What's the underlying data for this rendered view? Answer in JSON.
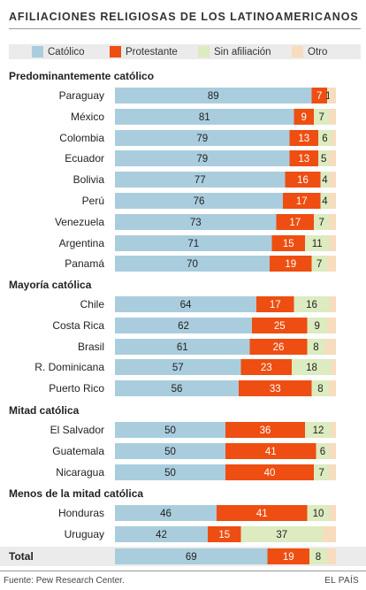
{
  "title": "AFILIACIONES RELIGIOSAS DE LOS LATINOAMERICANOS",
  "source": "Fuente: Pew Research Center.",
  "brand": "EL PAÍS",
  "colors": {
    "catolico": "#aacdde",
    "protestante": "#ee4e11",
    "sin_afiliacion": "#dcebc0",
    "otro": "#f7dcbe",
    "total_row": "#ebebeb"
  },
  "legend": [
    {
      "label": "Católico",
      "color": "#aacdde"
    },
    {
      "label": "Protestante",
      "color": "#ee4e11"
    },
    {
      "label": "Sin afiliación",
      "color": "#dcebc0"
    },
    {
      "label": "Otro",
      "color": "#f7dcbe"
    }
  ],
  "chart_data": {
    "type": "bar",
    "stacked": true,
    "orientation": "horizontal",
    "unit": "%",
    "xlim": [
      0,
      100
    ],
    "series_names": [
      "Católico",
      "Protestante",
      "Sin afiliación",
      "Otro"
    ],
    "groups": [
      {
        "name": "Predominantemente católico",
        "rows": [
          {
            "label": "Paraguay",
            "values": [
              89,
              7,
              1,
              3
            ]
          },
          {
            "label": "México",
            "values": [
              81,
              9,
              7,
              3
            ]
          },
          {
            "label": "Colombia",
            "values": [
              79,
              13,
              6,
              2
            ]
          },
          {
            "label": "Ecuador",
            "values": [
              79,
              13,
              5,
              3
            ]
          },
          {
            "label": "Bolivia",
            "values": [
              77,
              16,
              4,
              3
            ]
          },
          {
            "label": "Perú",
            "values": [
              76,
              17,
              4,
              3
            ]
          },
          {
            "label": "Venezuela",
            "values": [
              73,
              17,
              7,
              3
            ]
          },
          {
            "label": "Argentina",
            "values": [
              71,
              15,
              11,
              3
            ]
          },
          {
            "label": "Panamá",
            "values": [
              70,
              19,
              7,
              4
            ]
          }
        ]
      },
      {
        "name": "Mayoría católica",
        "rows": [
          {
            "label": "Chile",
            "values": [
              64,
              17,
              16,
              3
            ]
          },
          {
            "label": "Costa Rica",
            "values": [
              62,
              25,
              9,
              4
            ]
          },
          {
            "label": "Brasil",
            "values": [
              61,
              26,
              8,
              5
            ]
          },
          {
            "label": "R. Dominicana",
            "values": [
              57,
              23,
              18,
              2
            ]
          },
          {
            "label": "Puerto Rico",
            "values": [
              56,
              33,
              8,
              3
            ]
          }
        ]
      },
      {
        "name": "Mitad católica",
        "rows": [
          {
            "label": "El Salvador",
            "values": [
              50,
              36,
              12,
              2
            ]
          },
          {
            "label": "Guatemala",
            "values": [
              50,
              41,
              6,
              3
            ]
          },
          {
            "label": "Nicaragua",
            "values": [
              50,
              40,
              7,
              3
            ]
          }
        ]
      },
      {
        "name": "Menos de la mitad católica",
        "rows": [
          {
            "label": "Honduras",
            "values": [
              46,
              41,
              10,
              3
            ]
          },
          {
            "label": "Uruguay",
            "values": [
              42,
              15,
              37,
              6
            ]
          }
        ]
      }
    ],
    "total": {
      "label": "Total",
      "values": [
        69,
        19,
        8,
        4
      ]
    },
    "data_labels_shown_for": [
      "Católico",
      "Protestante",
      "Sin afiliación"
    ]
  }
}
